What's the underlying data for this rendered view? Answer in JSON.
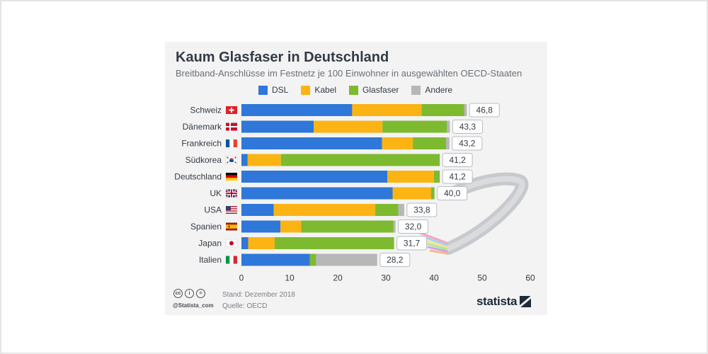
{
  "title": "Kaum Glasfaser in Deutschland",
  "subtitle": "Breitband-Anschlüsse im Festnetz je 100 Einwohner in ausgewählten OECD-Staaten",
  "footer": {
    "stand": "Stand: Dezember 2018",
    "quelle": "Quelle: OECD",
    "handle": "@Statista_com",
    "brand": "statista"
  },
  "chart_data": {
    "type": "bar",
    "orientation": "horizontal",
    "stacked": true,
    "title": "Kaum Glasfaser in Deutschland",
    "subtitle": "Breitband-Anschlüsse im Festnetz je 100 Einwohner in ausgewählten OECD-Staaten",
    "legend_position": "top",
    "grid": false,
    "xlim": [
      0,
      60
    ],
    "x_ticks": [
      "0",
      "10",
      "20",
      "30",
      "40",
      "50",
      "60"
    ],
    "categories": [
      "Schweiz",
      "Dänemark",
      "Frankreich",
      "Südkorea",
      "Deutschland",
      "UK",
      "USA",
      "Spanien",
      "Japan",
      "Italien"
    ],
    "totals": [
      "46,8",
      "43,3",
      "43,2",
      "41,2",
      "41,2",
      "40,0",
      "33,8",
      "32,0",
      "31,7",
      "28,2"
    ],
    "series": [
      {
        "name": "DSL",
        "color": "#2f77d8",
        "values": [
          23.0,
          15.0,
          29.2,
          1.3,
          30.3,
          31.4,
          6.7,
          8.1,
          1.4,
          14.2
        ]
      },
      {
        "name": "Kabel",
        "color": "#fbb414",
        "values": [
          14.4,
          14.3,
          6.4,
          6.9,
          9.7,
          8.0,
          21.1,
          4.3,
          5.5,
          0.0
        ]
      },
      {
        "name": "Glasfaser",
        "color": "#7dba2f",
        "values": [
          8.9,
          13.4,
          6.9,
          33.0,
          1.2,
          0.7,
          4.8,
          19.2,
          24.8,
          1.3
        ]
      },
      {
        "name": "Andere",
        "color": "#b7b7b7",
        "values": [
          0.5,
          0.6,
          0.7,
          0.0,
          0.0,
          0.0,
          1.2,
          0.4,
          0.0,
          12.7
        ]
      }
    ],
    "flags": [
      "ch",
      "dk",
      "fr",
      "kr",
      "de",
      "uk",
      "us",
      "es",
      "jp",
      "it"
    ]
  }
}
